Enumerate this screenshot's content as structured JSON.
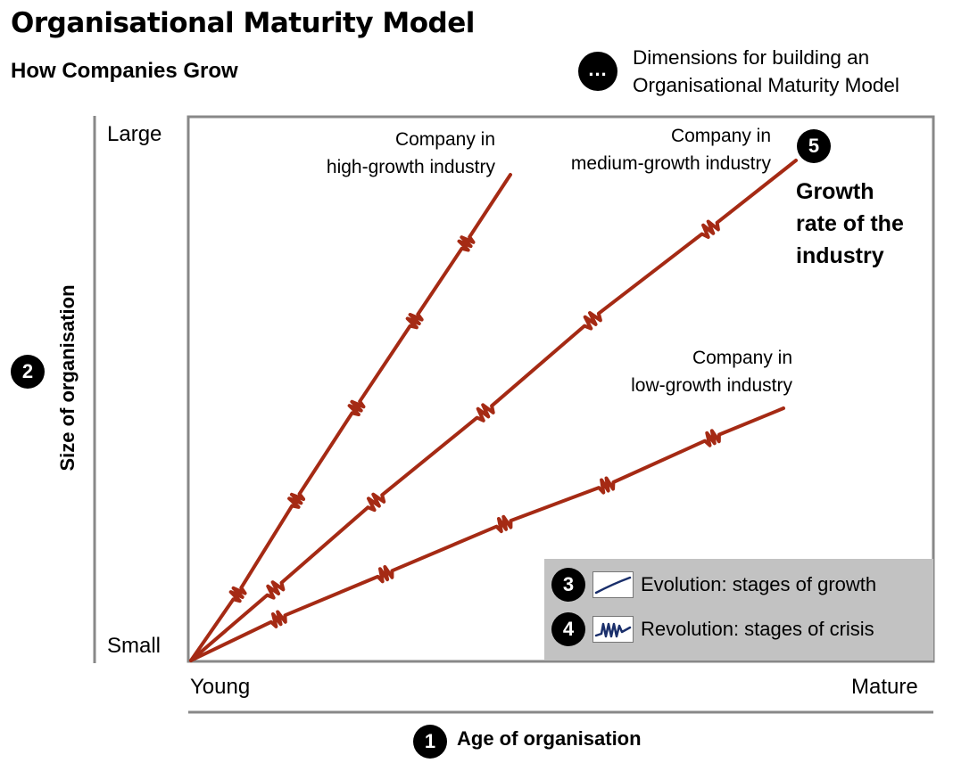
{
  "header": {
    "title": "Organisational Maturity Model",
    "subtitle": "How Companies Grow"
  },
  "dimensions_note": {
    "badge": "...",
    "line1": "Dimensions for building an",
    "line2": "Organisational Maturity Model"
  },
  "y_axis": {
    "badge": "2",
    "label": "Size of organisation",
    "top_label": "Large",
    "bottom_label": "Small"
  },
  "x_axis": {
    "badge": "1",
    "label": "Age of organisation",
    "left_label": "Young",
    "right_label": "Mature"
  },
  "curves": {
    "high": {
      "line1": "Company in",
      "line2": "high-growth industry"
    },
    "medium": {
      "line1": "Company in",
      "line2": "medium-growth industry"
    },
    "low": {
      "line1": "Company in",
      "line2": "low-growth industry"
    }
  },
  "industry": {
    "badge": "5",
    "line1": "Growth",
    "line2": "rate of the",
    "line3": "industry"
  },
  "legend": {
    "evolution": {
      "badge": "3",
      "label": "Evolution: stages of growth"
    },
    "revolution": {
      "badge": "4",
      "label": "Revolution: stages of crisis"
    }
  },
  "colors": {
    "curve": "#a52a14",
    "frame": "#888888",
    "legend_bg": "#c2c2c2",
    "evolution_line": "#1a2f6b"
  }
}
